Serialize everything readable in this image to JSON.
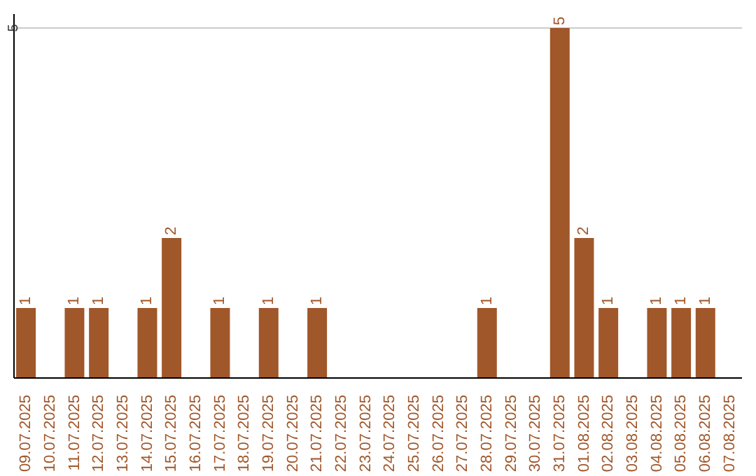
{
  "chart_data": {
    "type": "bar",
    "categories": [
      "09.07.2025",
      "10.07.2025",
      "11.07.2025",
      "12.07.2025",
      "13.07.2025",
      "14.07.2025",
      "15.07.2025",
      "16.07.2025",
      "17.07.2025",
      "18.07.2025",
      "19.07.2025",
      "20.07.2025",
      "21.07.2025",
      "22.07.2025",
      "23.07.2025",
      "24.07.2025",
      "25.07.2025",
      "26.07.2025",
      "27.07.2025",
      "28.07.2025",
      "29.07.2025",
      "30.07.2025",
      "31.07.2025",
      "01.08.2025",
      "02.08.2025",
      "03.08.2025",
      "04.08.2025",
      "05.08.2025",
      "06.08.2025",
      "07.08.2025"
    ],
    "values": [
      1,
      0,
      1,
      1,
      0,
      1,
      2,
      0,
      1,
      0,
      1,
      0,
      1,
      0,
      0,
      0,
      0,
      0,
      0,
      1,
      0,
      0,
      5,
      2,
      1,
      0,
      1,
      1,
      1,
      0
    ],
    "value_labels": [
      "1",
      null,
      "1",
      "1",
      null,
      "1",
      "2",
      null,
      "1",
      null,
      "1",
      null,
      "1",
      null,
      null,
      null,
      null,
      null,
      null,
      "1",
      null,
      null,
      "5",
      "2",
      "1",
      null,
      "1",
      "1",
      "1",
      null
    ],
    "color": "#a0572a",
    "ylim": [
      0,
      5.2
    ],
    "yticks": [
      5
    ],
    "grid": "y"
  }
}
